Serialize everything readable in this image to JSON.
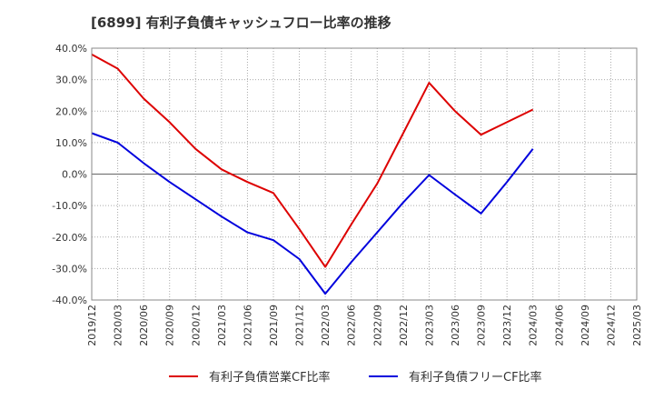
{
  "chart_data": {
    "type": "line",
    "title": "[6899]  有利子負債キャッシュフロー比率の推移",
    "x": [
      "2019/12",
      "2020/03",
      "2020/06",
      "2020/09",
      "2020/12",
      "2021/03",
      "2021/06",
      "2021/09",
      "2021/12",
      "2022/03",
      "2022/06",
      "2022/09",
      "2022/12",
      "2023/03",
      "2023/06",
      "2023/09",
      "2023/12",
      "2024/03",
      "2024/06",
      "2024/09",
      "2024/12",
      "2025/03"
    ],
    "ylim": [
      -40,
      40
    ],
    "yticks": [
      -40,
      -30,
      -20,
      -10,
      0,
      10,
      20,
      30,
      40
    ],
    "ytick_labels": [
      "-40.0%",
      "-30.0%",
      "-20.0%",
      "-10.0%",
      "0.0%",
      "10.0%",
      "20.0%",
      "30.0%",
      "40.0%"
    ],
    "grid": true,
    "legend_position": "bottom",
    "series": [
      {
        "name": "有利子負債営業CF比率",
        "color": "#dd0000",
        "values": [
          38.0,
          33.5,
          24.0,
          16.5,
          8.0,
          1.5,
          -2.5,
          -6.0,
          -17.5,
          -29.5,
          -16.0,
          -3.0,
          13.0,
          29.0,
          20.0,
          12.5,
          16.5,
          20.5,
          null,
          null,
          null,
          null
        ]
      },
      {
        "name": "有利子負債フリーCF比率",
        "color": "#0000dd",
        "values": [
          13.0,
          10.0,
          3.5,
          -2.5,
          -8.0,
          -13.5,
          -18.5,
          -21.0,
          -27.0,
          -38.0,
          -28.0,
          -18.5,
          -9.0,
          -0.3,
          -6.5,
          -12.5,
          -2.5,
          8.0,
          null,
          null,
          null,
          null
        ]
      }
    ]
  }
}
